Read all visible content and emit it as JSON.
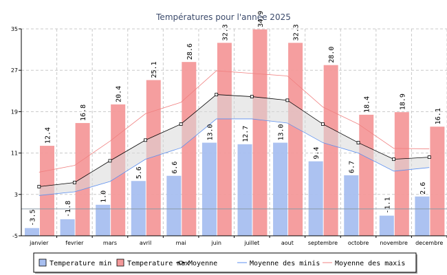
{
  "chart_data": {
    "type": "bar",
    "title": "Températures pour l'année 2025",
    "categories": [
      "janvier",
      "fevrier",
      "mars",
      "avril",
      "mai",
      "juin",
      "juillet",
      "aout",
      "septembre",
      "octobre",
      "novembre",
      "decembre"
    ],
    "ylim": [
      -5,
      35
    ],
    "yticks": [
      -5,
      3,
      11,
      19,
      27,
      35
    ],
    "series": [
      {
        "name": "Temperature min",
        "kind": "bar",
        "color": "#a8bff0",
        "values": [
          -3.5,
          -1.8,
          1.0,
          5.6,
          6.6,
          13.0,
          12.7,
          13.0,
          9.4,
          6.7,
          -1.1,
          2.6
        ],
        "labels": [
          "-3.5",
          "-1.8",
          "1.0",
          "5.6",
          "6.6",
          "13.0",
          "12.7",
          "13.0",
          "9.4",
          "6.7",
          "-1.1",
          "2.6"
        ]
      },
      {
        "name": "Temperature max",
        "kind": "bar",
        "color": "#f4999a",
        "values": [
          12.4,
          16.8,
          20.4,
          25.1,
          28.6,
          32.3,
          34.9,
          32.3,
          28.0,
          18.4,
          18.9,
          16.1
        ],
        "labels": [
          "12.4",
          "16.8",
          "20.4",
          "25.1",
          "28.6",
          "32.3",
          "34.9",
          "32.3",
          "28.0",
          "18.4",
          "18.9",
          "16.1"
        ]
      },
      {
        "name": "Moyenne",
        "kind": "line-marker",
        "color": "#000000",
        "values": [
          4.5,
          5.3,
          9.5,
          13.5,
          16.6,
          22.3,
          21.9,
          21.2,
          16.6,
          13.0,
          9.8,
          10.2
        ]
      },
      {
        "name": "Moyenne des minis",
        "kind": "line",
        "color": "#5b8ff0",
        "values": [
          2.8,
          3.5,
          5.5,
          9.8,
          12.0,
          17.6,
          17.6,
          16.8,
          13.0,
          11.0,
          7.5,
          8.2
        ]
      },
      {
        "name": "Moyenne des maxis",
        "kind": "line",
        "color": "#f08080",
        "values": [
          7.3,
          8.6,
          13.3,
          18.6,
          20.8,
          26.9,
          26.4,
          25.9,
          19.9,
          16.6,
          11.9,
          11.8
        ]
      }
    ],
    "baseline": 0.2
  },
  "legend": [
    {
      "label": "Temperature min"
    },
    {
      "label": "Temperature max"
    },
    {
      "label": "Moyenne"
    },
    {
      "label": "Moyenne des minis"
    },
    {
      "label": "Moyenne des maxis"
    }
  ]
}
